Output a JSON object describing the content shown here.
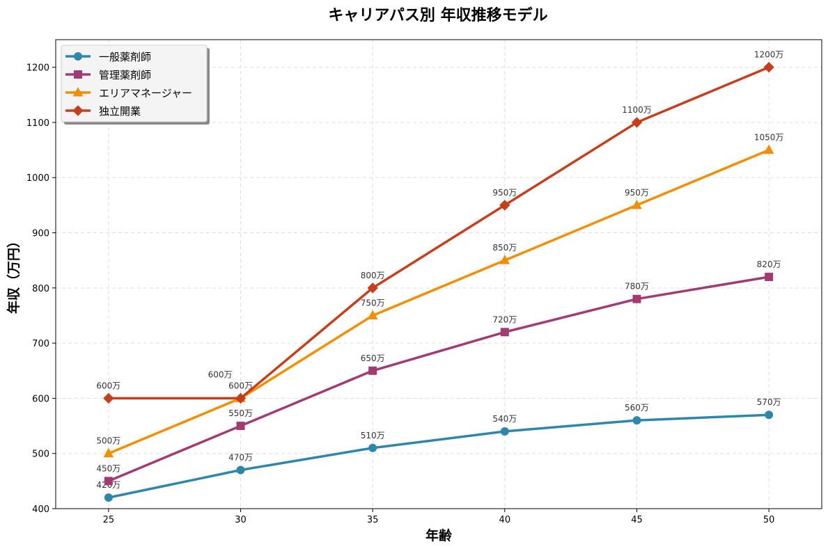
{
  "chart_data": {
    "type": "line",
    "title": "キャリアパス別 年収推移モデル",
    "xlabel": "年齢",
    "ylabel": "年収（万円）",
    "x": [
      25,
      30,
      35,
      40,
      45,
      50
    ],
    "xlim": [
      23,
      52
    ],
    "ylim": [
      400,
      1250
    ],
    "xticks": [
      "25",
      "30",
      "35",
      "40",
      "45",
      "50"
    ],
    "yticks": [
      "400",
      "500",
      "600",
      "700",
      "800",
      "900",
      "1000",
      "1100",
      "1200"
    ],
    "grid": true,
    "legend_placement": "top-left",
    "series": [
      {
        "name": "一般薬剤師",
        "color": "#2E86AB",
        "marker": "circle",
        "values": [
          420,
          470,
          510,
          540,
          560,
          570
        ],
        "labels": [
          "420万",
          "470万",
          "510万",
          "540万",
          "560万",
          "570万"
        ]
      },
      {
        "name": "管理薬剤師",
        "color": "#A23B72",
        "marker": "square",
        "values": [
          450,
          550,
          650,
          720,
          780,
          820
        ],
        "labels": [
          "450万",
          "550万",
          "650万",
          "720万",
          "780万",
          "820万"
        ]
      },
      {
        "name": "エリアマネージャー",
        "color": "#F18F01",
        "marker": "triangle",
        "values": [
          500,
          600,
          750,
          850,
          950,
          1050
        ],
        "labels": [
          "500万",
          "600万",
          "750万",
          "850万",
          "950万",
          "1050万"
        ]
      },
      {
        "name": "独立開業",
        "color": "#C73E1D",
        "marker": "diamond",
        "values": [
          600,
          600,
          800,
          950,
          1100,
          1200
        ],
        "labels": [
          "600万",
          "600万",
          "800万",
          "950万",
          "1100万",
          "1200万"
        ]
      }
    ]
  }
}
